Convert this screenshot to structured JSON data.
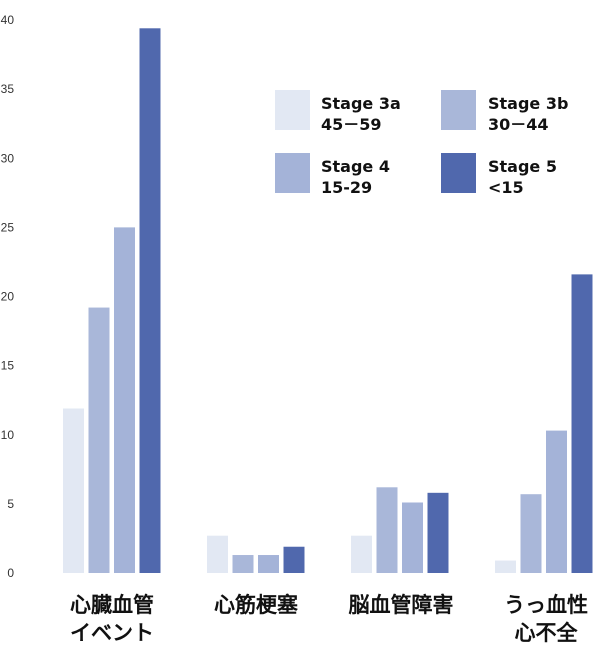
{
  "chart_data": {
    "type": "bar",
    "categories": [
      [
        "心臓血管",
        "イベント"
      ],
      [
        "心筋梗塞"
      ],
      [
        "脳血管障害"
      ],
      [
        "うっ血性",
        "心不全"
      ]
    ],
    "series": [
      {
        "name": [
          "Stage 3a",
          "45－59"
        ],
        "color": "#e2e8f3",
        "values": [
          11.9,
          2.7,
          2.7,
          0.9
        ]
      },
      {
        "name": [
          "Stage 3b",
          "30－44"
        ],
        "color": "#a9b7d9",
        "values": [
          19.2,
          1.3,
          6.2,
          5.7
        ]
      },
      {
        "name": [
          "Stage 4",
          "15-29"
        ],
        "color": "#a4b3d8",
        "values": [
          25.0,
          1.3,
          5.1,
          10.3
        ]
      },
      {
        "name": [
          "Stage 5",
          "<15"
        ],
        "color": "#5068ad",
        "values": [
          39.4,
          1.9,
          5.8,
          21.6
        ]
      }
    ],
    "ylim": [
      0,
      40
    ],
    "yticks": [
      0,
      5,
      10,
      15,
      20,
      25,
      30,
      35,
      40
    ],
    "grid": false,
    "legend_position": "top-right"
  }
}
